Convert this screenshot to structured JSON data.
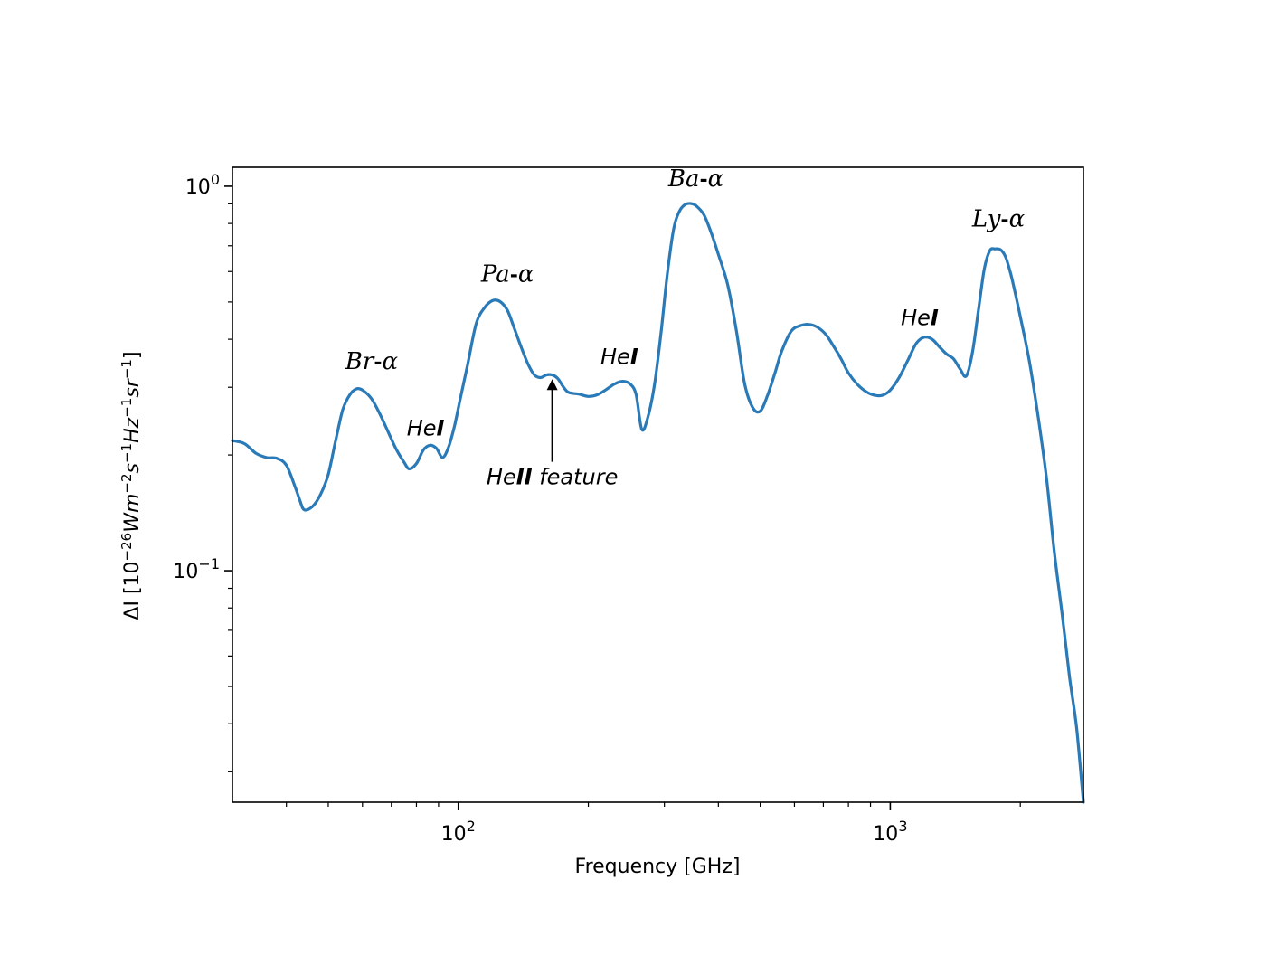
{
  "chart_data": {
    "type": "line",
    "xscale": "log",
    "yscale": "log",
    "xlim": [
      30,
      2800
    ],
    "ylim": [
      0.025,
      1.12
    ],
    "xlabel": "Frequency [GHz]",
    "ylabel": {
      "base": "ΔI [10",
      "exp1": "−26",
      "units": "Wm",
      "exp2": "−2",
      "s": "s",
      "exp3": "−1",
      "hz": "Hz",
      "exp4": "−1",
      "sr": "sr",
      "exp5": "−1",
      "close": "]"
    },
    "x_ticks": [
      {
        "value": 100,
        "base": "10",
        "exp": "2"
      },
      {
        "value": 1000,
        "base": "10",
        "exp": "3"
      }
    ],
    "y_ticks": [
      {
        "value": 0.1,
        "base": "10",
        "exp": "−1"
      },
      {
        "value": 1.0,
        "base": "10",
        "exp": "0"
      }
    ],
    "line_color": "#2a7ab8",
    "series": [
      {
        "name": "",
        "x": [
          30,
          32,
          34,
          36,
          38,
          40,
          42,
          43,
          44,
          46,
          48,
          50,
          52,
          54,
          56,
          58,
          60,
          63,
          66,
          69,
          72,
          75,
          77,
          80,
          83,
          86,
          89,
          92,
          95,
          98,
          101,
          105,
          110,
          115,
          120,
          125,
          130,
          135,
          140,
          145,
          150,
          155,
          160,
          165,
          170,
          175,
          180,
          190,
          200,
          210,
          220,
          230,
          240,
          250,
          258,
          266,
          275,
          285,
          295,
          305,
          315,
          325,
          335,
          345,
          355,
          370,
          385,
          400,
          420,
          440,
          460,
          480,
          500,
          520,
          540,
          560,
          590,
          620,
          650,
          680,
          710,
          740,
          770,
          800,
          840,
          880,
          920,
          960,
          1000,
          1050,
          1100,
          1150,
          1200,
          1250,
          1300,
          1350,
          1400,
          1450,
          1500,
          1550,
          1600,
          1650,
          1700,
          1750,
          1800,
          1850,
          1900,
          1950,
          2000,
          2100,
          2200,
          2300,
          2400,
          2500,
          2600,
          2700,
          2800
        ],
        "y": [
          0.218,
          0.214,
          0.202,
          0.197,
          0.196,
          0.188,
          0.164,
          0.152,
          0.144,
          0.147,
          0.158,
          0.178,
          0.218,
          0.262,
          0.286,
          0.297,
          0.295,
          0.28,
          0.254,
          0.228,
          0.206,
          0.191,
          0.184,
          0.19,
          0.206,
          0.212,
          0.208,
          0.197,
          0.21,
          0.238,
          0.279,
          0.342,
          0.439,
          0.483,
          0.504,
          0.501,
          0.475,
          0.425,
          0.38,
          0.345,
          0.323,
          0.318,
          0.323,
          0.323,
          0.316,
          0.301,
          0.291,
          0.288,
          0.284,
          0.287,
          0.296,
          0.306,
          0.311,
          0.306,
          0.287,
          0.233,
          0.252,
          0.308,
          0.421,
          0.597,
          0.772,
          0.861,
          0.896,
          0.902,
          0.89,
          0.844,
          0.757,
          0.665,
          0.556,
          0.423,
          0.307,
          0.266,
          0.26,
          0.286,
          0.325,
          0.371,
          0.42,
          0.434,
          0.437,
          0.429,
          0.411,
          0.383,
          0.355,
          0.327,
          0.305,
          0.292,
          0.286,
          0.286,
          0.295,
          0.319,
          0.354,
          0.391,
          0.405,
          0.4,
          0.382,
          0.366,
          0.356,
          0.335,
          0.321,
          0.37,
          0.476,
          0.608,
          0.68,
          0.687,
          0.684,
          0.654,
          0.592,
          0.523,
          0.458,
          0.35,
          0.251,
          0.174,
          0.111,
          0.077,
          0.053,
          0.039,
          0.025
        ]
      }
    ],
    "annotations": [
      {
        "text": "Br",
        "suffix": "α",
        "style": "serif",
        "x": 63,
        "y": 0.335
      },
      {
        "text": "He",
        "bold": "I",
        "style": "sans",
        "x": 84,
        "y": 0.225
      },
      {
        "text": "Pa",
        "suffix": "α",
        "style": "serif",
        "x": 130,
        "y": 0.565
      },
      {
        "text": "He",
        "bold": "I",
        "style": "sans",
        "x": 236,
        "y": 0.345
      },
      {
        "text": "Ba",
        "suffix": "α",
        "style": "serif",
        "x": 355,
        "y": 1.0
      },
      {
        "text": "He",
        "bold": "I",
        "style": "sans",
        "x": 1170,
        "y": 0.435
      },
      {
        "text": "Ly",
        "suffix": "α",
        "style": "serif",
        "x": 1780,
        "y": 0.785
      }
    ],
    "arrow": {
      "label_pre": "He",
      "label_bold": "II",
      "label_post": " feature",
      "x": 165,
      "y_head": 0.315,
      "y_tail": 0.192,
      "y_label": 0.168
    }
  }
}
